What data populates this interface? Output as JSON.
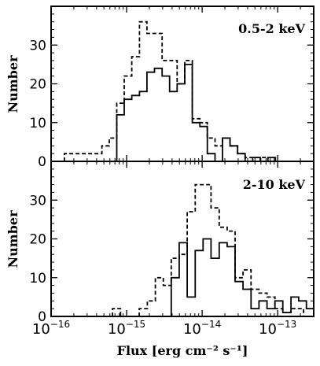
{
  "chart_data": [
    {
      "type": "histogram",
      "panel_label": "0.5-2 keV",
      "ylabel": "Number",
      "xscale": "log",
      "xlim": [
        1e-16,
        3e-13
      ],
      "ylim": [
        0,
        40
      ],
      "yticks": [
        "0",
        "10",
        "20",
        "30"
      ],
      "series": [
        {
          "style": "dashed",
          "bins": [
            {
              "x0": 1.5e-16,
              "x1": 4.7e-16,
              "y": 2
            },
            {
              "x0": 4.7e-16,
              "x1": 5.9e-16,
              "y": 4
            },
            {
              "x0": 5.9e-16,
              "x1": 7.4e-16,
              "y": 6
            },
            {
              "x0": 7.4e-16,
              "x1": 9.3e-16,
              "y": 15
            },
            {
              "x0": 9.3e-16,
              "x1": 1.17e-15,
              "y": 22
            },
            {
              "x0": 1.17e-15,
              "x1": 1.48e-15,
              "y": 27
            },
            {
              "x0": 1.48e-15,
              "x1": 1.86e-15,
              "y": 36
            },
            {
              "x0": 1.86e-15,
              "x1": 2.34e-15,
              "y": 33
            },
            {
              "x0": 2.34e-15,
              "x1": 2.95e-15,
              "y": 33
            },
            {
              "x0": 2.95e-15,
              "x1": 3.71e-15,
              "y": 26
            },
            {
              "x0": 3.71e-15,
              "x1": 4.67e-15,
              "y": 26
            },
            {
              "x0": 4.67e-15,
              "x1": 5.88e-15,
              "y": 20
            },
            {
              "x0": 5.88e-15,
              "x1": 7.41e-15,
              "y": 26
            },
            {
              "x0": 7.41e-15,
              "x1": 9.33e-15,
              "y": 11
            },
            {
              "x0": 9.33e-15,
              "x1": 1.17e-14,
              "y": 10
            },
            {
              "x0": 1.17e-14,
              "x1": 1.48e-14,
              "y": 6
            },
            {
              "x0": 1.48e-14,
              "x1": 1.86e-14,
              "y": 4
            },
            {
              "x0": 1.86e-14,
              "x1": 2.34e-14,
              "y": 6
            },
            {
              "x0": 2.34e-14,
              "x1": 2.95e-14,
              "y": 4
            },
            {
              "x0": 2.95e-14,
              "x1": 3.71e-14,
              "y": 2
            },
            {
              "x0": 3.71e-14,
              "x1": 7.41e-14,
              "y": 1
            }
          ]
        },
        {
          "style": "solid",
          "bins": [
            {
              "x0": 7.4e-16,
              "x1": 9.3e-16,
              "y": 12
            },
            {
              "x0": 9.3e-16,
              "x1": 1.17e-15,
              "y": 16
            },
            {
              "x0": 1.17e-15,
              "x1": 1.48e-15,
              "y": 17
            },
            {
              "x0": 1.48e-15,
              "x1": 1.86e-15,
              "y": 18
            },
            {
              "x0": 1.86e-15,
              "x1": 2.34e-15,
              "y": 23
            },
            {
              "x0": 2.34e-15,
              "x1": 2.95e-15,
              "y": 24
            },
            {
              "x0": 2.95e-15,
              "x1": 3.71e-15,
              "y": 22
            },
            {
              "x0": 3.71e-15,
              "x1": 4.67e-15,
              "y": 18
            },
            {
              "x0": 4.67e-15,
              "x1": 5.88e-15,
              "y": 20
            },
            {
              "x0": 5.88e-15,
              "x1": 7.41e-15,
              "y": 25
            },
            {
              "x0": 7.41e-15,
              "x1": 9.33e-15,
              "y": 10
            },
            {
              "x0": 9.33e-15,
              "x1": 1.17e-14,
              "y": 9
            },
            {
              "x0": 1.17e-14,
              "x1": 1.48e-14,
              "y": 2
            },
            {
              "x0": 1.48e-14,
              "x1": 1.86e-14,
              "y": 0
            },
            {
              "x0": 1.86e-14,
              "x1": 2.34e-14,
              "y": 6
            },
            {
              "x0": 2.34e-14,
              "x1": 2.95e-14,
              "y": 4
            },
            {
              "x0": 2.95e-14,
              "x1": 3.71e-14,
              "y": 2
            },
            {
              "x0": 3.71e-14,
              "x1": 4.67e-14,
              "y": 0
            },
            {
              "x0": 4.67e-14,
              "x1": 5.88e-14,
              "y": 1
            },
            {
              "x0": 5.88e-14,
              "x1": 7.41e-14,
              "y": 0
            },
            {
              "x0": 7.41e-14,
              "x1": 9.33e-14,
              "y": 1
            }
          ]
        }
      ]
    },
    {
      "type": "histogram",
      "panel_label": "2-10 keV",
      "ylabel": "Number",
      "xlabel": "Flux [erg cm⁻² s⁻¹]",
      "xscale": "log",
      "xlim": [
        1e-16,
        3e-13
      ],
      "ylim": [
        0,
        40
      ],
      "yticks": [
        "0",
        "10",
        "20",
        "30"
      ],
      "xticks": [
        {
          "base": "10",
          "exp": "−16",
          "value": 1e-16
        },
        {
          "base": "10",
          "exp": "−15",
          "value": 1e-15
        },
        {
          "base": "10",
          "exp": "−14",
          "value": 1e-14
        },
        {
          "base": "10",
          "exp": "−13",
          "value": 1e-13
        }
      ],
      "series": [
        {
          "style": "dashed",
          "bins": [
            {
              "x0": 6.5e-16,
              "x1": 8.3e-16,
              "y": 2
            },
            {
              "x0": 8.3e-16,
              "x1": 1.05e-15,
              "y": 0
            },
            {
              "x0": 1.47e-15,
              "x1": 1.88e-15,
              "y": 2
            },
            {
              "x0": 1.88e-15,
              "x1": 2.4e-15,
              "y": 4
            },
            {
              "x0": 2.4e-15,
              "x1": 3.06e-15,
              "y": 10
            },
            {
              "x0": 3.06e-15,
              "x1": 3.9e-15,
              "y": 8
            },
            {
              "x0": 3.9e-15,
              "x1": 4.97e-15,
              "y": 15
            },
            {
              "x0": 4.97e-15,
              "x1": 6.34e-15,
              "y": 16
            },
            {
              "x0": 6.34e-15,
              "x1": 8.09e-15,
              "y": 27
            },
            {
              "x0": 8.09e-15,
              "x1": 1.03e-14,
              "y": 34
            },
            {
              "x0": 1.03e-14,
              "x1": 1.31e-14,
              "y": 34
            },
            {
              "x0": 1.31e-14,
              "x1": 1.68e-14,
              "y": 28
            },
            {
              "x0": 1.68e-14,
              "x1": 2.14e-14,
              "y": 23
            },
            {
              "x0": 2.14e-14,
              "x1": 2.73e-14,
              "y": 22
            },
            {
              "x0": 2.73e-14,
              "x1": 3.48e-14,
              "y": 10
            },
            {
              "x0": 3.48e-14,
              "x1": 4.44e-14,
              "y": 12
            },
            {
              "x0": 4.44e-14,
              "x1": 5.66e-14,
              "y": 7
            },
            {
              "x0": 5.66e-14,
              "x1": 7.22e-14,
              "y": 6
            },
            {
              "x0": 7.22e-14,
              "x1": 9.2e-14,
              "y": 5
            },
            {
              "x0": 9.2e-14,
              "x1": 1.17e-13,
              "y": 2
            },
            {
              "x0": 1.17e-13,
              "x1": 1.5e-13,
              "y": 1
            },
            {
              "x0": 1.5e-13,
              "x1": 2.2e-13,
              "y": 2
            }
          ]
        },
        {
          "style": "solid",
          "bins": [
            {
              "x0": 3.9e-15,
              "x1": 4.97e-15,
              "y": 10
            },
            {
              "x0": 4.97e-15,
              "x1": 6.34e-15,
              "y": 19
            },
            {
              "x0": 6.34e-15,
              "x1": 8.09e-15,
              "y": 5
            },
            {
              "x0": 8.09e-15,
              "x1": 1.03e-14,
              "y": 17
            },
            {
              "x0": 1.03e-14,
              "x1": 1.31e-14,
              "y": 20
            },
            {
              "x0": 1.31e-14,
              "x1": 1.68e-14,
              "y": 15
            },
            {
              "x0": 1.68e-14,
              "x1": 2.14e-14,
              "y": 19
            },
            {
              "x0": 2.14e-14,
              "x1": 2.73e-14,
              "y": 18
            },
            {
              "x0": 2.73e-14,
              "x1": 3.48e-14,
              "y": 9
            },
            {
              "x0": 3.48e-14,
              "x1": 4.44e-14,
              "y": 7
            },
            {
              "x0": 4.44e-14,
              "x1": 5.66e-14,
              "y": 2
            },
            {
              "x0": 5.66e-14,
              "x1": 7.22e-14,
              "y": 4
            },
            {
              "x0": 7.22e-14,
              "x1": 9.2e-14,
              "y": 2
            },
            {
              "x0": 9.2e-14,
              "x1": 1.17e-13,
              "y": 4
            },
            {
              "x0": 1.17e-13,
              "x1": 1.5e-13,
              "y": 1
            },
            {
              "x0": 1.5e-13,
              "x1": 1.9e-13,
              "y": 5
            },
            {
              "x0": 1.9e-13,
              "x1": 2.4e-13,
              "y": 4
            },
            {
              "x0": 2.4e-13,
              "x1": 3e-13,
              "y": 2
            }
          ]
        }
      ]
    }
  ]
}
